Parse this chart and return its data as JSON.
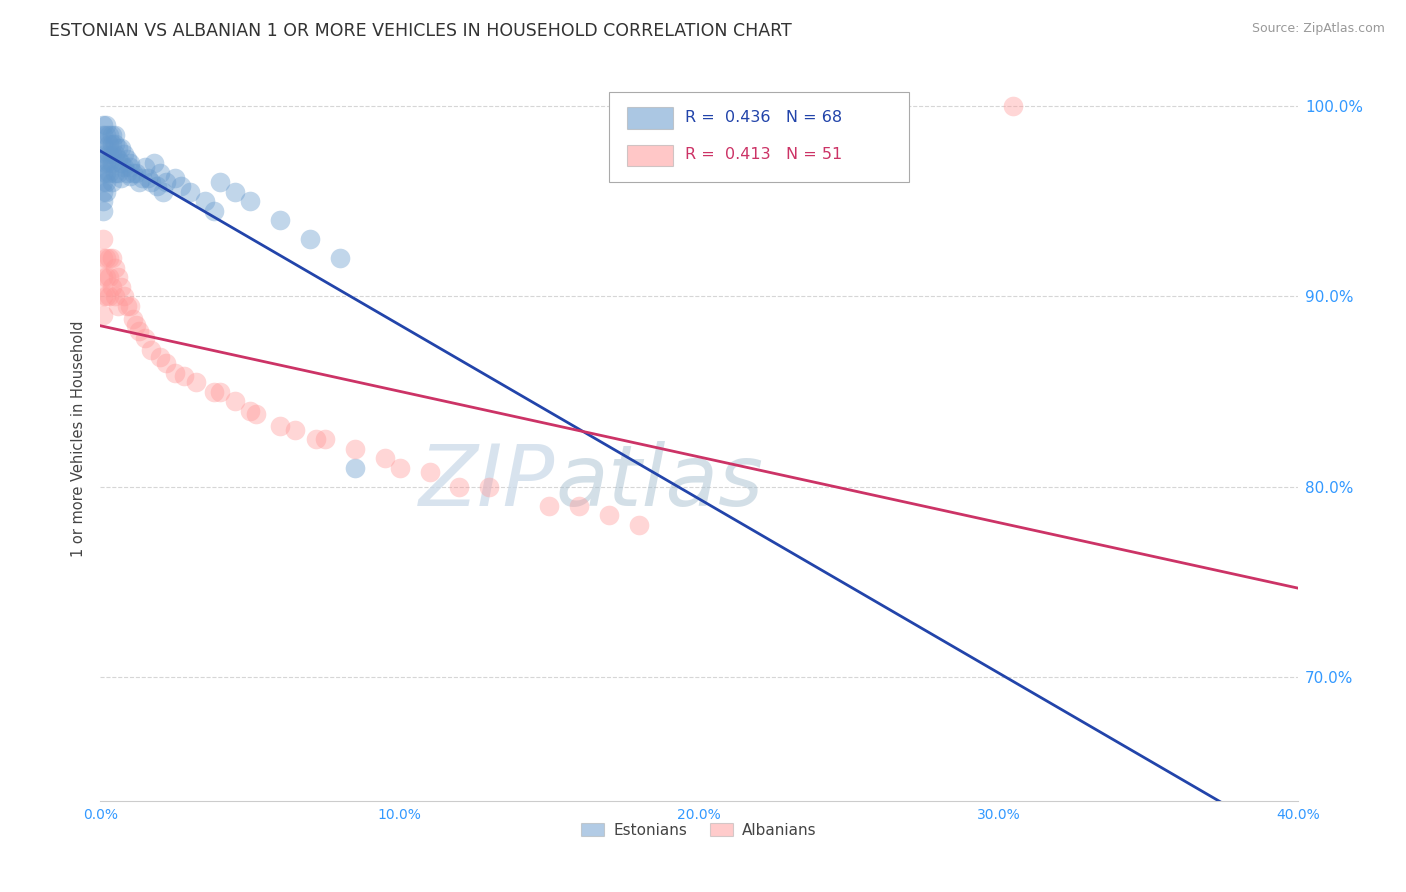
{
  "title": "ESTONIAN VS ALBANIAN 1 OR MORE VEHICLES IN HOUSEHOLD CORRELATION CHART",
  "ylabel": "1 or more Vehicles in Household",
  "source_text": "Source: ZipAtlas.com",
  "xlim": [
    0.0,
    0.4
  ],
  "ylim": [
    0.635,
    1.015
  ],
  "xtick_labels": [
    "0.0%",
    "",
    "",
    "",
    "",
    "10.0%",
    "",
    "",
    "",
    "",
    "20.0%",
    "",
    "",
    "",
    "",
    "30.0%",
    "",
    "",
    "",
    "",
    "40.0%"
  ],
  "xtick_vals": [
    0.0,
    0.02,
    0.04,
    0.06,
    0.08,
    0.1,
    0.12,
    0.14,
    0.16,
    0.18,
    0.2,
    0.22,
    0.24,
    0.26,
    0.28,
    0.3,
    0.32,
    0.34,
    0.36,
    0.38,
    0.4
  ],
  "ytick_labels": [
    "70.0%",
    "80.0%",
    "90.0%",
    "100.0%"
  ],
  "ytick_vals": [
    0.7,
    0.8,
    0.9,
    1.0
  ],
  "estonian_color": "#6699CC",
  "albanian_color": "#FF9999",
  "estonian_line_color": "#2244AA",
  "albanian_line_color": "#CC3366",
  "R_estonian": 0.436,
  "N_estonian": 68,
  "R_albanian": 0.413,
  "N_albanian": 51,
  "legend_label_estonian": "Estonians",
  "legend_label_albanian": "Albanians",
  "title_color": "#333333",
  "axis_label_color": "#444444",
  "tick_color": "#3399FF",
  "grid_color": "#CCCCCC",
  "source_color": "#999999",
  "est_x": [
    0.001,
    0.001,
    0.001,
    0.001,
    0.001,
    0.001,
    0.001,
    0.001,
    0.001,
    0.001,
    0.002,
    0.002,
    0.002,
    0.002,
    0.002,
    0.002,
    0.002,
    0.003,
    0.003,
    0.003,
    0.003,
    0.003,
    0.004,
    0.004,
    0.004,
    0.004,
    0.004,
    0.005,
    0.005,
    0.005,
    0.005,
    0.006,
    0.006,
    0.006,
    0.007,
    0.007,
    0.007,
    0.008,
    0.008,
    0.009,
    0.009,
    0.01,
    0.01,
    0.012,
    0.013,
    0.015,
    0.016,
    0.018,
    0.02,
    0.022,
    0.025,
    0.027,
    0.03,
    0.035,
    0.038,
    0.04,
    0.045,
    0.05,
    0.06,
    0.07,
    0.08,
    0.085,
    0.01,
    0.011,
    0.014,
    0.017,
    0.019,
    0.021
  ],
  "est_y": [
    0.99,
    0.985,
    0.98,
    0.975,
    0.97,
    0.965,
    0.96,
    0.955,
    0.95,
    0.945,
    0.99,
    0.985,
    0.975,
    0.97,
    0.965,
    0.96,
    0.955,
    0.985,
    0.98,
    0.975,
    0.97,
    0.965,
    0.985,
    0.98,
    0.975,
    0.97,
    0.96,
    0.985,
    0.98,
    0.975,
    0.965,
    0.978,
    0.972,
    0.965,
    0.978,
    0.97,
    0.962,
    0.975,
    0.968,
    0.972,
    0.965,
    0.97,
    0.963,
    0.965,
    0.96,
    0.968,
    0.962,
    0.97,
    0.965,
    0.96,
    0.962,
    0.958,
    0.955,
    0.95,
    0.945,
    0.96,
    0.955,
    0.95,
    0.94,
    0.93,
    0.92,
    0.81,
    0.968,
    0.965,
    0.962,
    0.96,
    0.958,
    0.955
  ],
  "alb_x": [
    0.001,
    0.001,
    0.001,
    0.001,
    0.001,
    0.002,
    0.002,
    0.002,
    0.003,
    0.003,
    0.003,
    0.004,
    0.004,
    0.005,
    0.005,
    0.006,
    0.006,
    0.007,
    0.008,
    0.009,
    0.01,
    0.011,
    0.012,
    0.013,
    0.015,
    0.017,
    0.02,
    0.022,
    0.025,
    0.028,
    0.032,
    0.038,
    0.045,
    0.052,
    0.06,
    0.072,
    0.085,
    0.1,
    0.12,
    0.15,
    0.18,
    0.04,
    0.05,
    0.065,
    0.075,
    0.095,
    0.11,
    0.13,
    0.16,
    0.17,
    0.305
  ],
  "alb_y": [
    0.93,
    0.92,
    0.91,
    0.9,
    0.89,
    0.92,
    0.91,
    0.9,
    0.92,
    0.91,
    0.9,
    0.92,
    0.905,
    0.915,
    0.9,
    0.91,
    0.895,
    0.905,
    0.9,
    0.895,
    0.895,
    0.888,
    0.885,
    0.882,
    0.878,
    0.872,
    0.868,
    0.865,
    0.86,
    0.858,
    0.855,
    0.85,
    0.845,
    0.838,
    0.832,
    0.825,
    0.82,
    0.81,
    0.8,
    0.79,
    0.78,
    0.85,
    0.84,
    0.83,
    0.825,
    0.815,
    0.808,
    0.8,
    0.79,
    0.785,
    1.0
  ]
}
